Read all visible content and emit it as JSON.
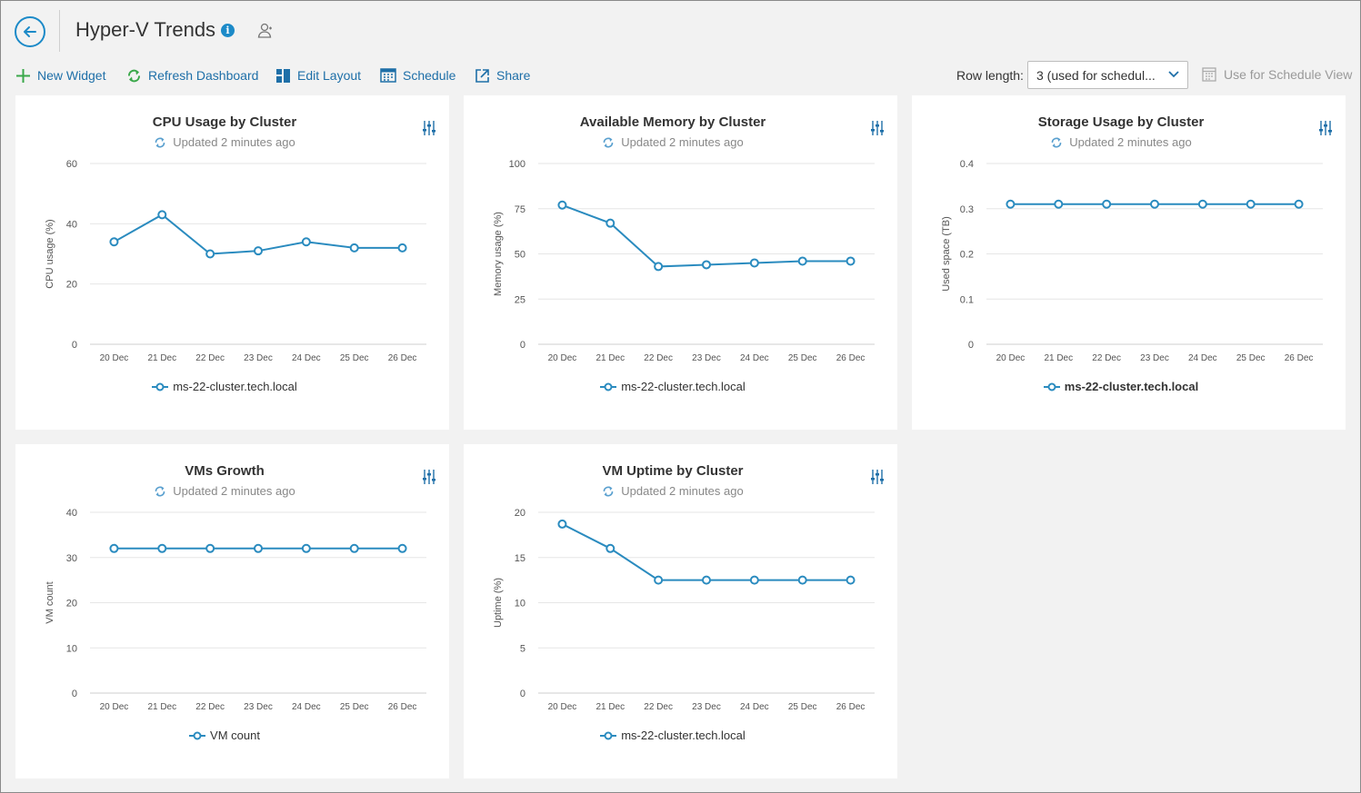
{
  "header": {
    "title": "Hyper-V Trends",
    "info_icon": "info-icon",
    "user_icon": "user-share-icon"
  },
  "toolbar": {
    "new_widget": "New Widget",
    "refresh_dashboard": "Refresh Dashboard",
    "edit_layout": "Edit Layout",
    "schedule": "Schedule",
    "share": "Share",
    "row_length_label": "Row length:",
    "row_length_value": "3 (used for schedul...",
    "schedule_view": "Use for Schedule View"
  },
  "colors": {
    "accent": "#1c8ac8",
    "line": "#2a8bbf",
    "refresh_green": "#3aa84a"
  },
  "updated_text": "Updated 2 minutes ago",
  "widgets": [
    {
      "title": "CPU Usage by Cluster",
      "chart_data": {
        "type": "line",
        "title": "CPU Usage by Cluster",
        "x": [
          "20 Dec",
          "21 Dec",
          "22 Dec",
          "23 Dec",
          "24 Dec",
          "25 Dec",
          "26 Dec"
        ],
        "ylabel": "CPU usage (%)",
        "yticks": [
          "0",
          "20",
          "40",
          "60"
        ],
        "ylim": [
          0,
          60
        ],
        "series": [
          {
            "name": "ms-22-cluster.tech.local",
            "values": [
              34,
              43,
              30,
              31,
              34,
              32,
              32
            ]
          }
        ],
        "legend": "bottom",
        "grid": true
      }
    },
    {
      "title": "Available Memory by Cluster",
      "chart_data": {
        "type": "line",
        "title": "Available Memory by Cluster",
        "x": [
          "20 Dec",
          "21 Dec",
          "22 Dec",
          "23 Dec",
          "24 Dec",
          "25 Dec",
          "26 Dec"
        ],
        "ylabel": "Memory usage (%)",
        "yticks": [
          "0",
          "25",
          "50",
          "75",
          "100"
        ],
        "ylim": [
          0,
          100
        ],
        "series": [
          {
            "name": "ms-22-cluster.tech.local",
            "values": [
              77,
              67,
              43,
              44,
              45,
              46,
              46
            ]
          }
        ],
        "legend": "bottom",
        "grid": true
      }
    },
    {
      "title": "Storage Usage by Cluster",
      "chart_data": {
        "type": "line",
        "title": "Storage Usage by Cluster",
        "x": [
          "20 Dec",
          "21 Dec",
          "22 Dec",
          "23 Dec",
          "24 Dec",
          "25 Dec",
          "26 Dec"
        ],
        "ylabel": "Used space (TB)",
        "yticks": [
          "0",
          "0.1",
          "0.2",
          "0.3",
          "0.4"
        ],
        "ylim": [
          0,
          0.4
        ],
        "series": [
          {
            "name": "ms-22-cluster.tech.local",
            "values": [
              0.31,
              0.31,
              0.31,
              0.31,
              0.31,
              0.31,
              0.31
            ]
          }
        ],
        "legend": "bottom",
        "legend_bold": true,
        "grid": true
      }
    },
    {
      "title": "VMs Growth",
      "chart_data": {
        "type": "line",
        "title": "VMs Growth",
        "x": [
          "20 Dec",
          "21 Dec",
          "22 Dec",
          "23 Dec",
          "24 Dec",
          "25 Dec",
          "26 Dec"
        ],
        "ylabel": "VM count",
        "yticks": [
          "0",
          "10",
          "20",
          "30",
          "40"
        ],
        "ylim": [
          0,
          40
        ],
        "series": [
          {
            "name": "VM count",
            "values": [
              32,
              32,
              32,
              32,
              32,
              32,
              32
            ]
          }
        ],
        "legend": "bottom",
        "grid": true
      }
    },
    {
      "title": "VM Uptime by Cluster",
      "chart_data": {
        "type": "line",
        "title": "VM Uptime by Cluster",
        "x": [
          "20 Dec",
          "21 Dec",
          "22 Dec",
          "23 Dec",
          "24 Dec",
          "25 Dec",
          "26 Dec"
        ],
        "ylabel": "Uptime (%)",
        "yticks": [
          "0",
          "5",
          "10",
          "15",
          "20"
        ],
        "ylim": [
          0,
          20
        ],
        "series": [
          {
            "name": "ms-22-cluster.tech.local",
            "values": [
              18.7,
              16,
              12.5,
              12.5,
              12.5,
              12.5,
              12.5
            ]
          }
        ],
        "legend": "bottom",
        "grid": true
      }
    }
  ]
}
